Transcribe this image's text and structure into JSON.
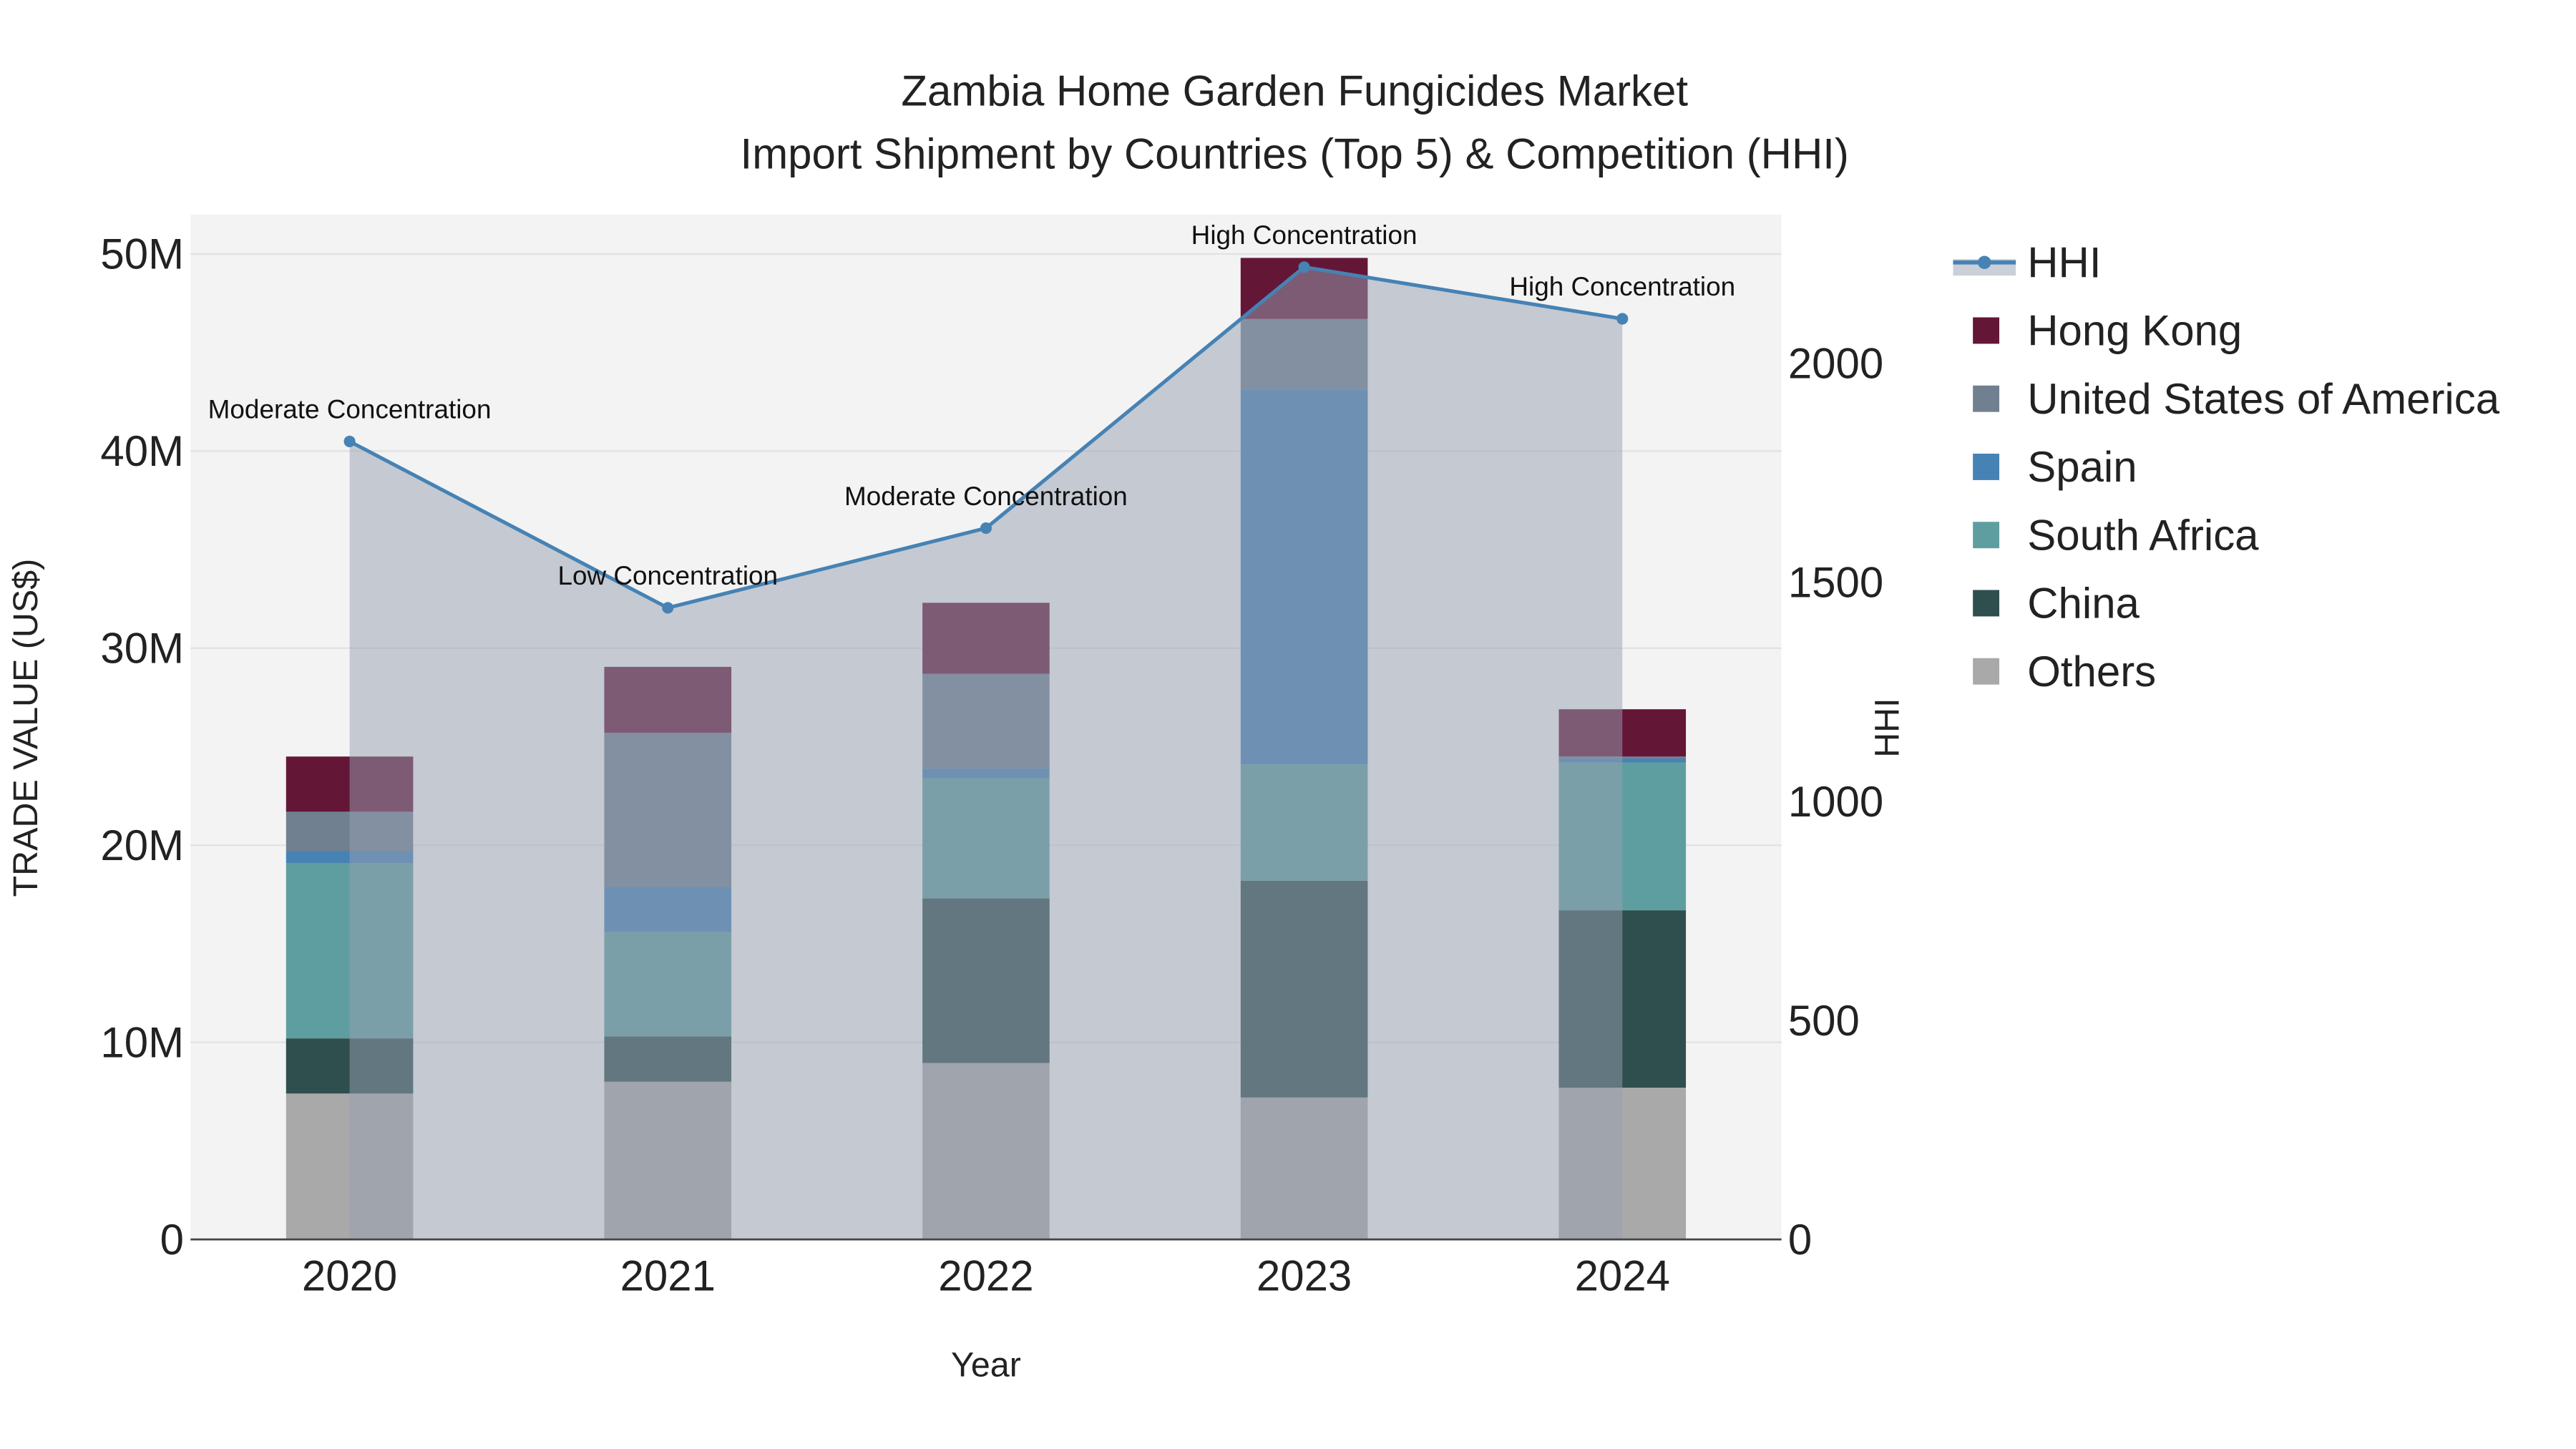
{
  "chart_data": {
    "type": "bar",
    "title_line1": "Zambia Home Garden Fungicides Market",
    "title_line2": "Import Shipment by Countries (Top 5) & Competition (HHI)",
    "xlabel": "Year",
    "ylabel": "TRADE VALUE (US$)",
    "y2label": "HHI",
    "categories": [
      "2020",
      "2021",
      "2022",
      "2023",
      "2024"
    ],
    "ylim": [
      0,
      52000000
    ],
    "y2lim": [
      0,
      2340
    ],
    "yticks": [
      {
        "v": 0,
        "label": "0"
      },
      {
        "v": 10000000,
        "label": "10M"
      },
      {
        "v": 20000000,
        "label": "20M"
      },
      {
        "v": 30000000,
        "label": "30M"
      },
      {
        "v": 40000000,
        "label": "40M"
      },
      {
        "v": 50000000,
        "label": "50M"
      }
    ],
    "y2ticks": [
      {
        "v": 0,
        "label": "0"
      },
      {
        "v": 500,
        "label": "500"
      },
      {
        "v": 1000,
        "label": "1000"
      },
      {
        "v": 1500,
        "label": "1500"
      },
      {
        "v": 2000,
        "label": "2000"
      }
    ],
    "grid": true,
    "legend_placement": "right",
    "series": [
      {
        "name": "Others",
        "color": "#a9a9a9",
        "values": [
          7400000,
          8000000,
          8950000,
          7200000,
          7700000
        ]
      },
      {
        "name": "China",
        "color": "#2f4f4f",
        "values": [
          2800000,
          2300000,
          8350000,
          11000000,
          9000000
        ]
      },
      {
        "name": "South Africa",
        "color": "#5f9ea0",
        "values": [
          8900000,
          5300000,
          6100000,
          5900000,
          7500000
        ]
      },
      {
        "name": "Spain",
        "color": "#4682b4",
        "values": [
          600000,
          2300000,
          500000,
          19000000,
          200000
        ]
      },
      {
        "name": "United States of America",
        "color": "#708090",
        "values": [
          2000000,
          7800000,
          4800000,
          3600000,
          100000
        ]
      },
      {
        "name": "Hong Kong",
        "color": "#641637",
        "values": [
          2800000,
          3350000,
          3600000,
          3100000,
          2400000
        ]
      }
    ],
    "hhi": {
      "name": "HHI",
      "color": "#4682b4",
      "values": [
        1822,
        1442,
        1624,
        2220,
        2102
      ],
      "annotations": [
        "Moderate Concentration",
        "Low Concentration",
        "Moderate Concentration",
        "High Concentration",
        "High Concentration"
      ]
    },
    "legend_order": [
      "HHI",
      "Hong Kong",
      "United States of America",
      "Spain",
      "South Africa",
      "China",
      "Others"
    ]
  }
}
